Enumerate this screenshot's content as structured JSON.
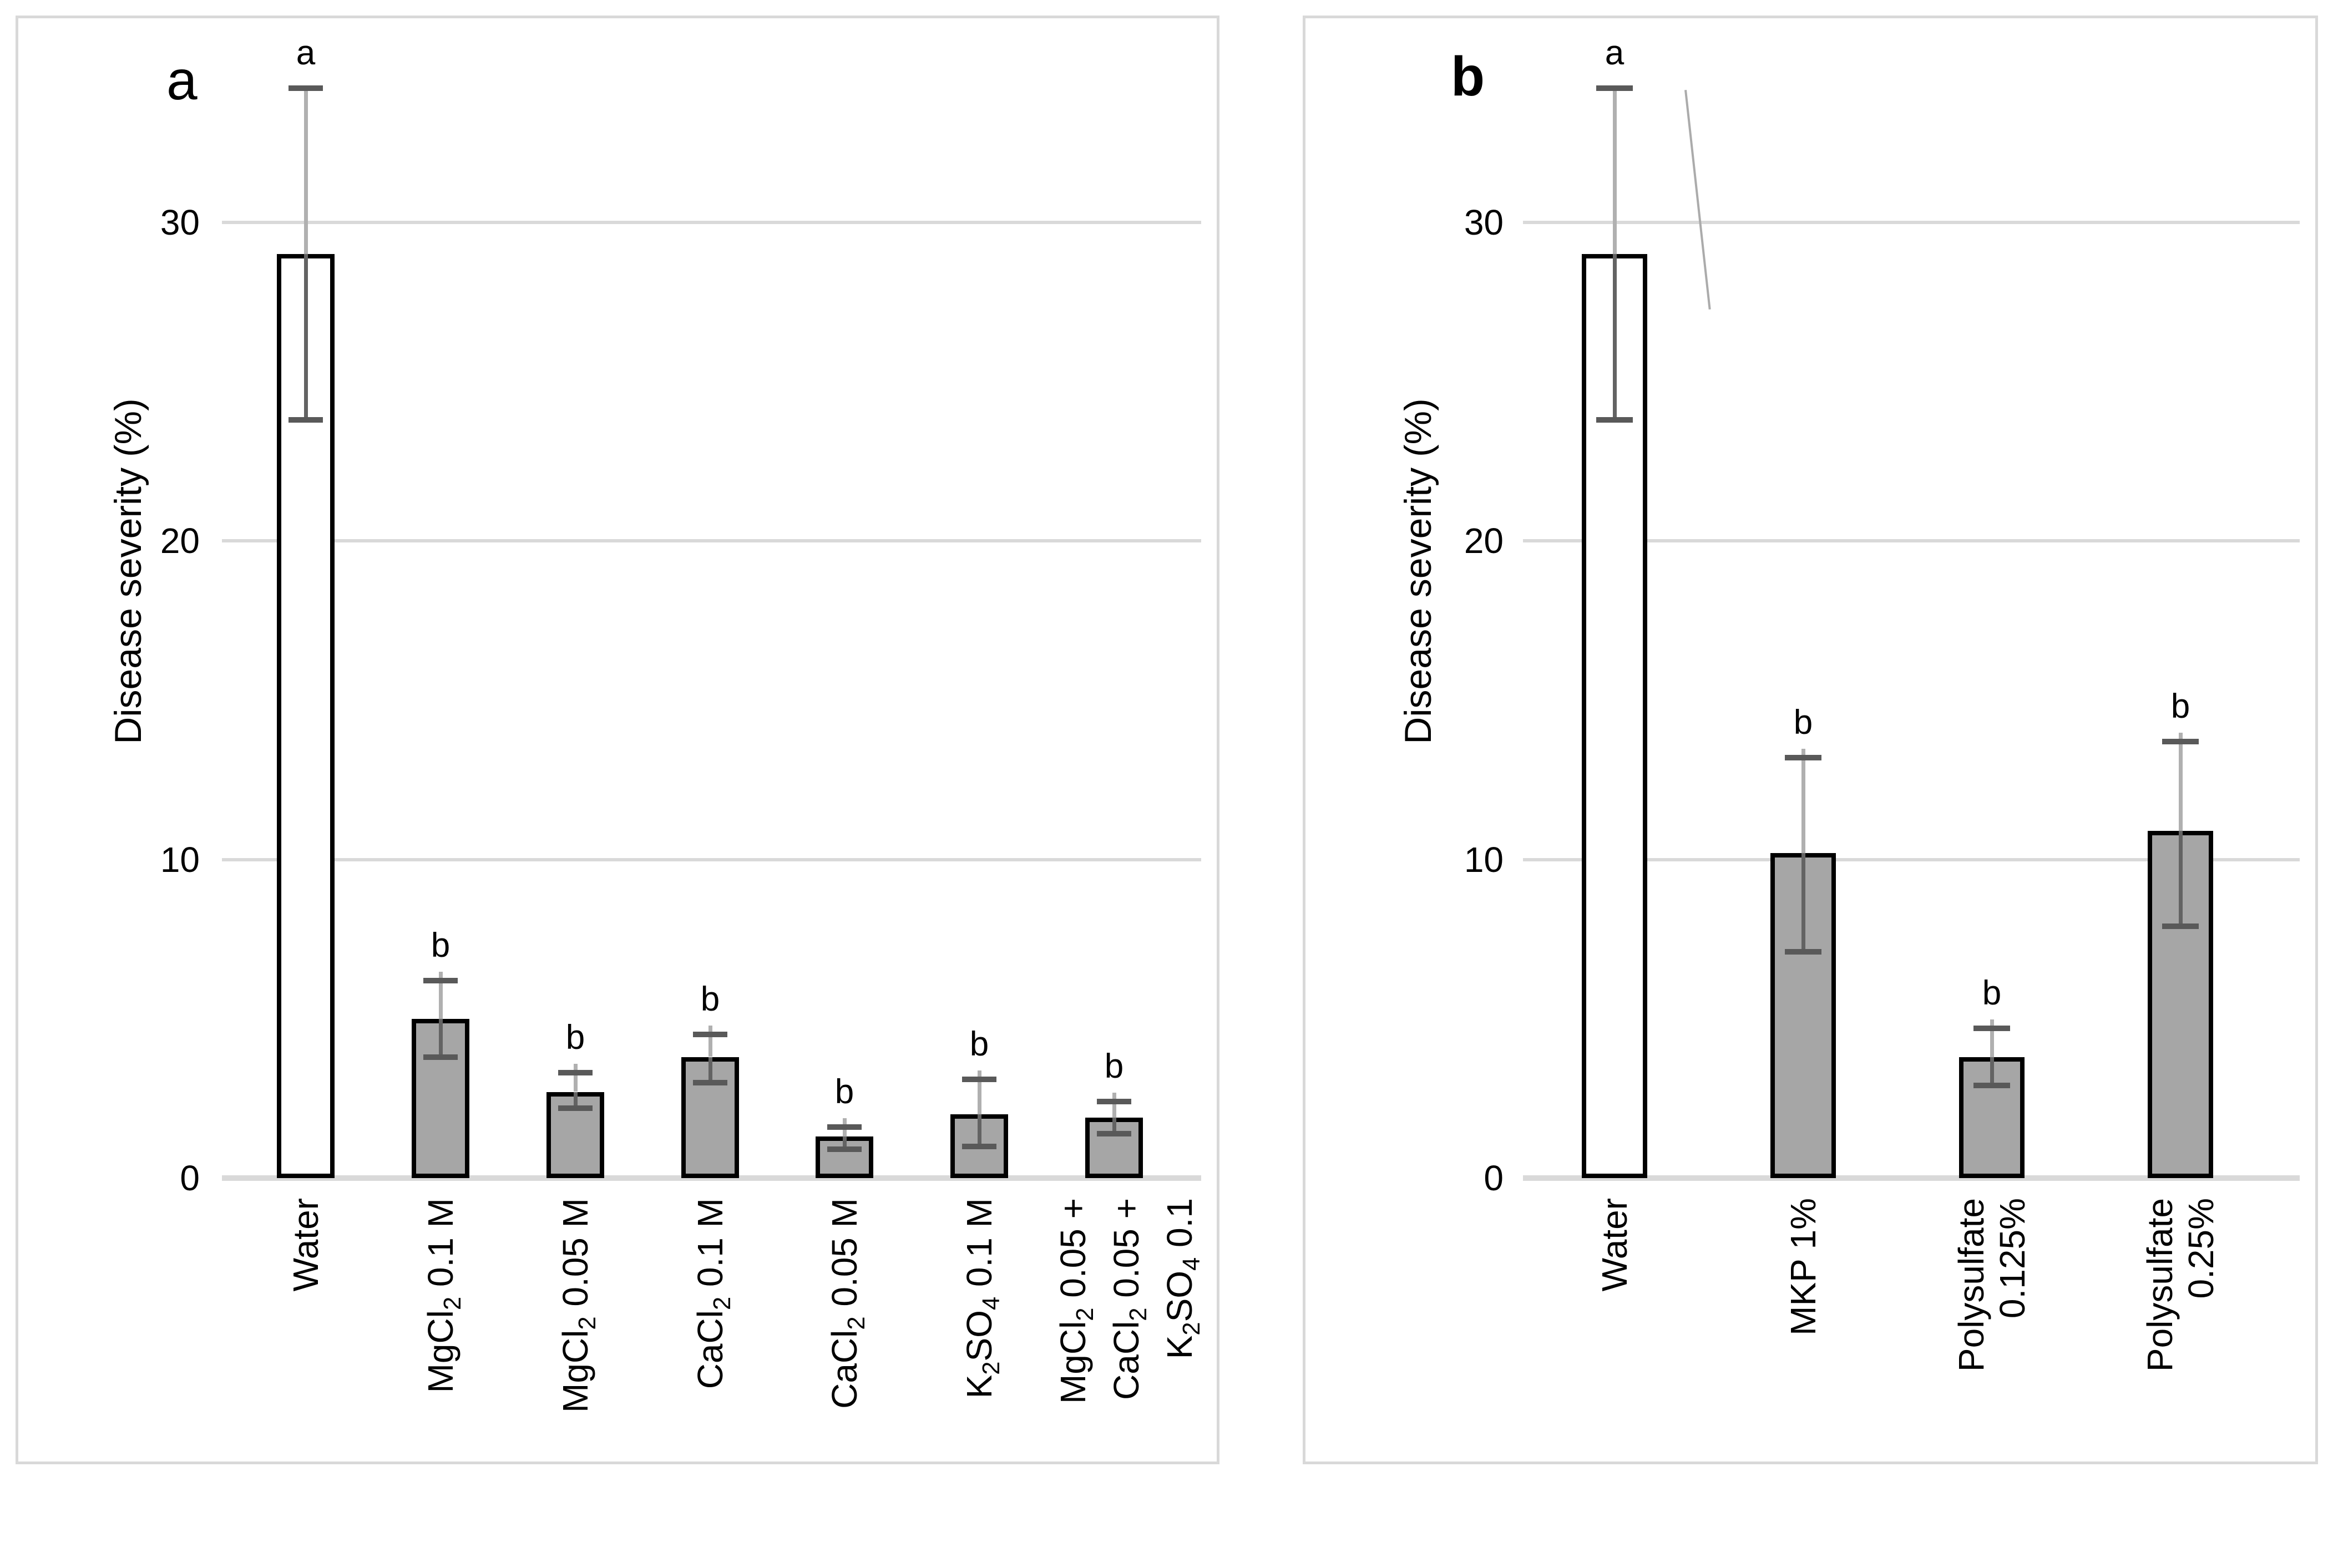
{
  "figure": {
    "background": "#ffffff",
    "panel_border_color": "#d9d9d9",
    "gridline_color": "#d9d9d9",
    "bar_border_color": "#000000",
    "bar_gray_fill": "#a6a6a6",
    "bar_white_fill": "#ffffff",
    "error_line_up_color": "#b0b0b0",
    "error_line_down_color": "#636363",
    "error_cap_color": "#595959",
    "artifact_line_color": "#ababab",
    "text_color": "#000000"
  },
  "chart_data": [
    {
      "type": "bar",
      "panel_label": "a",
      "panel_label_bold": false,
      "title": "",
      "xlabel": "",
      "ylabel": "Disease severity (%)",
      "ylim": [
        0,
        35.5
      ],
      "y_ticks": [
        0,
        10,
        20,
        30
      ],
      "grid": true,
      "legend": null,
      "categories": [
        "Water",
        "MgCl2 0.1 M",
        "MgCl2 0.05 M",
        "CaCl2 0.1 M",
        "CaCl2 0.05 M",
        "K2SO4 0.1 M",
        "MgCl2 0.05 + CaCl2 0.05 + K2SO4 0.1"
      ],
      "category_lines": [
        [
          "Water"
        ],
        [
          "MgCl_2_ 0.1 M"
        ],
        [
          "MgCl_2_ 0.05 M"
        ],
        [
          "CaCl_2_ 0.1 M"
        ],
        [
          "CaCl_2_ 0.05 M"
        ],
        [
          "K_2_SO_4_ 0.1 M"
        ],
        [
          "MgCl_2_ 0.05 +",
          "CaCl_2_ 0.05 +",
          "K_2_SO_4_ 0.1"
        ]
      ],
      "values": [
        29.0,
        5.0,
        2.7,
        3.8,
        1.3,
        2.0,
        1.9
      ],
      "error_high": [
        34.2,
        6.2,
        3.3,
        4.5,
        1.6,
        3.1,
        2.4
      ],
      "error_low": [
        23.8,
        3.8,
        2.2,
        3.0,
        0.9,
        1.0,
        1.4
      ],
      "sig_letters": [
        "a",
        "b",
        "b",
        "b",
        "b",
        "b",
        "b"
      ],
      "bar_fills": [
        "white",
        "gray",
        "gray",
        "gray",
        "gray",
        "gray",
        "gray"
      ]
    },
    {
      "type": "bar",
      "panel_label": "b",
      "panel_label_bold": true,
      "title": "",
      "xlabel": "",
      "ylabel": "Disease severity (%)",
      "ylim": [
        0,
        35.5
      ],
      "y_ticks": [
        0,
        10,
        20,
        30
      ],
      "grid": true,
      "legend": null,
      "categories": [
        "Water",
        "MKP 1%",
        "Polysulfate 0.125%",
        "Polysulfate 0.25%"
      ],
      "category_lines": [
        [
          "Water"
        ],
        [
          "MKP 1%"
        ],
        [
          "Polysulfate",
          "0.125%"
        ],
        [
          "Polysulfate",
          "0.25%"
        ]
      ],
      "values": [
        29.0,
        10.2,
        3.8,
        10.9
      ],
      "error_high": [
        34.2,
        13.2,
        4.7,
        13.7
      ],
      "error_low": [
        23.8,
        7.1,
        2.9,
        7.9
      ],
      "sig_letters": [
        "a",
        "b",
        "b",
        "b"
      ],
      "bar_fills": [
        "white",
        "gray",
        "gray",
        "gray"
      ]
    }
  ]
}
